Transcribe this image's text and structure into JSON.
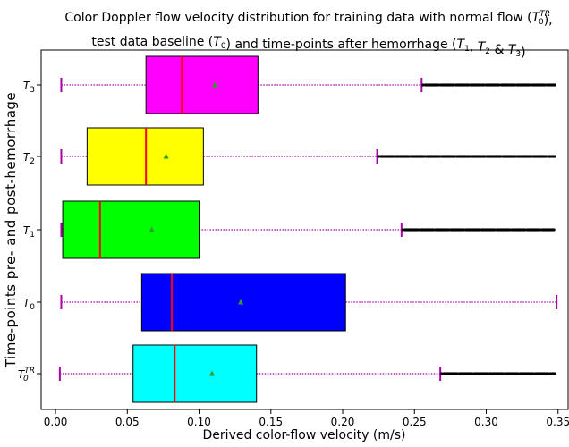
{
  "chart_data": {
    "type": "boxplot",
    "orientation": "horizontal",
    "title": [
      "Color Doppler flow velocity distribution for training data with normal flow (T_0^TR),",
      "test data baseline (T_0) and time-points after hemorrhage (T_1, T_2 & T_3)"
    ],
    "xlabel": "Derived color-flow velocity (m/s)",
    "ylabel": "Time-points pre- and post-hemorrhage",
    "xlim": [
      -0.01,
      0.357
    ],
    "xticks": [
      "0.00",
      "0.05",
      "0.10",
      "0.15",
      "0.20",
      "0.25",
      "0.30",
      "0.35"
    ],
    "xtick_values": [
      0.0,
      0.05,
      0.1,
      0.15,
      0.2,
      0.25,
      0.3,
      0.35
    ],
    "grid": false,
    "series": [
      {
        "label": "T_0^TR",
        "color": "#00ffff",
        "whisker_low": 0.003,
        "q1": 0.054,
        "median": 0.083,
        "q3": 0.14,
        "whisker_high": 0.268,
        "mean": 0.109,
        "outliers_range": [
          0.269,
          0.348
        ]
      },
      {
        "label": "T_0",
        "color": "#0000ff",
        "whisker_low": 0.004,
        "q1": 0.06,
        "median": 0.081,
        "q3": 0.202,
        "whisker_high": 0.349,
        "mean": 0.129,
        "outliers_range": null
      },
      {
        "label": "T_1",
        "color": "#00ff00",
        "whisker_low": 0.004,
        "q1": 0.005,
        "median": 0.031,
        "q3": 0.1,
        "whisker_high": 0.241,
        "mean": 0.067,
        "outliers_range": [
          0.242,
          0.348
        ]
      },
      {
        "label": "T_2",
        "color": "#ffff00",
        "whisker_low": 0.004,
        "q1": 0.022,
        "median": 0.063,
        "q3": 0.103,
        "whisker_high": 0.224,
        "mean": 0.077,
        "outliers_range": [
          0.225,
          0.348
        ]
      },
      {
        "label": "T_3",
        "color": "#ff00ff",
        "whisker_low": 0.004,
        "q1": 0.063,
        "median": 0.088,
        "q3": 0.141,
        "whisker_high": 0.255,
        "mean": 0.111,
        "outliers_range": [
          0.256,
          0.348
        ]
      }
    ],
    "colors": {
      "whisker": "#aa00aa",
      "median": "#ff0000",
      "mean_marker": "#2ca02c",
      "outlier": "#000000",
      "box_edge": "#000000"
    }
  }
}
